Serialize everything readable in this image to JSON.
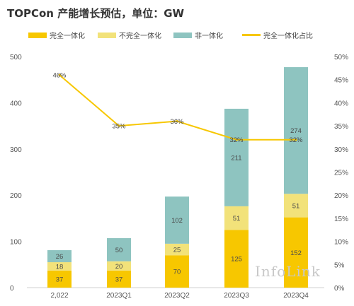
{
  "title": "TOPCon 产能增长预估，单位：GW",
  "watermark": "InfoLink",
  "colors": {
    "full": "#F7C700",
    "semi": "#F2E27A",
    "non": "#8EC4C0",
    "line": "#F7C700"
  },
  "legend": [
    {
      "label": "完全一体化",
      "type": "box",
      "color_key": "full"
    },
    {
      "label": "不完全一体化",
      "type": "box",
      "color_key": "semi"
    },
    {
      "label": "非一体化",
      "type": "box",
      "color_key": "non"
    },
    {
      "label": "完全一体化占比",
      "type": "line",
      "color_key": "line"
    }
  ],
  "chart_data": {
    "type": "bar",
    "stacked": true,
    "title": "TOPCon 产能增长预估，单位：GW",
    "categories": [
      "2,022",
      "2023Q1",
      "2023Q2",
      "2023Q3",
      "2023Q4"
    ],
    "series": [
      {
        "name": "完全一体化",
        "values": [
          37,
          37,
          70,
          125,
          152
        ],
        "labels": [
          "37",
          "37",
          "70",
          "125",
          "152"
        ],
        "color_key": "full"
      },
      {
        "name": "不完全一体化",
        "values": [
          18,
          20,
          25,
          51,
          51
        ],
        "labels": [
          "18",
          "20",
          "25",
          "51",
          "51"
        ],
        "color_key": "semi"
      },
      {
        "name": "非一体化",
        "values": [
          26,
          50,
          102,
          211,
          274
        ],
        "labels": [
          "26",
          "50",
          "102",
          "211",
          "274"
        ],
        "color_key": "non"
      }
    ],
    "line_series": {
      "name": "完全一体化占比",
      "values": [
        46,
        35,
        36,
        32,
        32
      ],
      "labels": [
        "46%",
        "35%",
        "36%",
        "32%",
        "32%"
      ],
      "axis": "right"
    },
    "y_left": {
      "min": 0,
      "max": 500,
      "ticks": [
        "0",
        "100",
        "200",
        "300",
        "400",
        "500"
      ]
    },
    "y_right": {
      "min": 0,
      "max": 50,
      "ticks": [
        "0%",
        "5%",
        "10%",
        "15%",
        "20%",
        "25%",
        "30%",
        "35%",
        "40%",
        "45%",
        "50%"
      ]
    },
    "grid": false,
    "legend_position": "top"
  }
}
